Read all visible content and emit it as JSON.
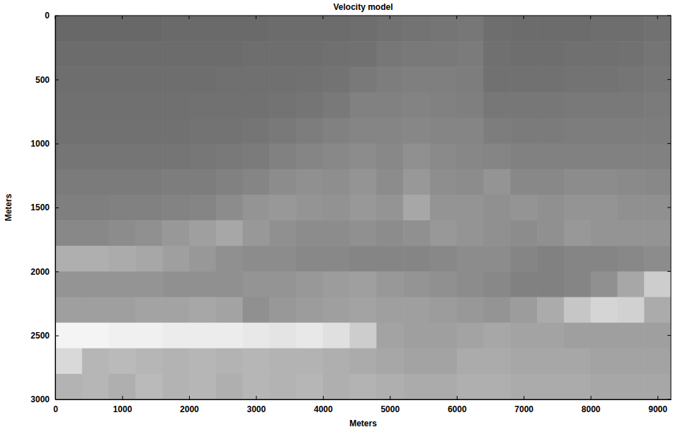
{
  "chart_data": {
    "type": "heatmap",
    "title": "Velocity model",
    "x_label": "Meters",
    "y_label": "Meters",
    "xlim": [
      0,
      9200
    ],
    "ylim": [
      0,
      3000
    ],
    "xticks": [
      0,
      1000,
      2000,
      3000,
      4000,
      5000,
      6000,
      7000,
      8000,
      9000
    ],
    "yticks": [
      0,
      500,
      1000,
      1500,
      2000,
      2500,
      3000
    ],
    "zlim": [
      1500,
      5500
    ],
    "x": [
      0,
      400,
      800,
      1200,
      1600,
      2000,
      2400,
      2800,
      3200,
      3600,
      4000,
      4400,
      4800,
      5200,
      5600,
      6000,
      6400,
      6800,
      7200,
      7600,
      8000,
      8400,
      8800,
      9200
    ],
    "y": [
      0,
      200,
      400,
      600,
      800,
      1000,
      1200,
      1400,
      1600,
      1800,
      2000,
      2200,
      2400,
      2600,
      2800,
      3000
    ],
    "values": [
      [
        1550,
        1550,
        1550,
        1550,
        1600,
        1600,
        1600,
        1600,
        1650,
        1650,
        1650,
        1700,
        1800,
        1850,
        1900,
        1950,
        1700,
        1650,
        1650,
        1650,
        1700,
        1700,
        1800
      ],
      [
        1650,
        1650,
        1650,
        1650,
        1650,
        1650,
        1650,
        1700,
        1700,
        1700,
        1750,
        1800,
        1950,
        2000,
        2000,
        2050,
        1750,
        1700,
        1700,
        1750,
        1750,
        1800,
        1900
      ],
      [
        1700,
        1700,
        1700,
        1700,
        1700,
        1700,
        1750,
        1750,
        1750,
        1800,
        1850,
        2000,
        2100,
        2150,
        2150,
        2100,
        1800,
        1800,
        1800,
        1850,
        1850,
        1900,
        1950
      ],
      [
        1750,
        1750,
        1750,
        1750,
        1750,
        1800,
        1800,
        1800,
        1850,
        1900,
        2000,
        2200,
        2200,
        2250,
        2200,
        2150,
        1950,
        1950,
        1950,
        2000,
        2000,
        2000,
        2050
      ],
      [
        1800,
        1800,
        1800,
        1800,
        1800,
        1850,
        1850,
        1900,
        2000,
        2100,
        2200,
        2300,
        2300,
        2350,
        2300,
        2300,
        2100,
        2050,
        2050,
        2100,
        2100,
        2100,
        2100
      ],
      [
        1900,
        1900,
        1900,
        1900,
        1900,
        1950,
        2000,
        2050,
        2200,
        2300,
        2400,
        2500,
        2400,
        2600,
        2450,
        2350,
        2300,
        2200,
        2200,
        2200,
        2200,
        2200,
        2200
      ],
      [
        2050,
        2050,
        2050,
        2050,
        2100,
        2100,
        2200,
        2300,
        2500,
        2600,
        2550,
        2700,
        2500,
        2800,
        2550,
        2500,
        2700,
        2400,
        2400,
        2500,
        2500,
        2450,
        2400
      ],
      [
        2150,
        2150,
        2200,
        2200,
        2250,
        2300,
        2500,
        2700,
        2800,
        2700,
        2650,
        2800,
        2700,
        3200,
        2700,
        2700,
        2600,
        2700,
        2600,
        2700,
        2700,
        2600,
        2600
      ],
      [
        2400,
        2400,
        2500,
        2600,
        2800,
        3000,
        3200,
        2800,
        2600,
        2500,
        2500,
        2600,
        2500,
        2600,
        2800,
        2700,
        2600,
        2500,
        2600,
        2800,
        2700,
        2700,
        2700
      ],
      [
        3400,
        3400,
        3300,
        3200,
        3000,
        2800,
        2600,
        2500,
        2500,
        2400,
        2400,
        2300,
        2300,
        2300,
        2400,
        2500,
        2500,
        2300,
        2200,
        2300,
        2300,
        2400,
        2500
      ],
      [
        2700,
        2700,
        2700,
        2700,
        2600,
        2600,
        2600,
        2700,
        2700,
        2800,
        2900,
        3000,
        2800,
        2700,
        2600,
        2500,
        2400,
        2200,
        2200,
        2300,
        2600,
        3200,
        4200
      ],
      [
        3000,
        3000,
        3000,
        3100,
        3100,
        3200,
        3100,
        2600,
        2800,
        2900,
        3000,
        3100,
        3000,
        3000,
        2900,
        2800,
        2700,
        2900,
        3300,
        4000,
        4400,
        4300,
        3300
      ],
      [
        5200,
        5200,
        5100,
        5100,
        5000,
        5000,
        5000,
        4900,
        4800,
        4900,
        4700,
        4200,
        3100,
        3000,
        3000,
        3100,
        3200,
        3100,
        3100,
        3000,
        3000,
        3000,
        3000
      ],
      [
        4500,
        3600,
        3700,
        3600,
        3500,
        3600,
        3500,
        3600,
        3500,
        3500,
        3400,
        3300,
        3200,
        3100,
        3100,
        3300,
        3300,
        3200,
        3200,
        3200,
        3100,
        3100,
        3100
      ],
      [
        3500,
        3600,
        3400,
        3700,
        3500,
        3600,
        3400,
        3600,
        3500,
        3600,
        3400,
        3500,
        3400,
        3300,
        3300,
        3400,
        3400,
        3300,
        3300,
        3300,
        3200,
        3200,
        3200
      ]
    ]
  }
}
